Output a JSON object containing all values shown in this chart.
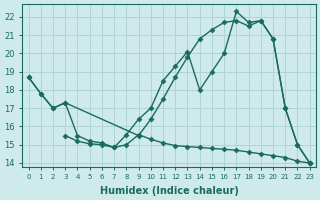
{
  "background_color": "#ceeaea",
  "grid_color": "#aed4d4",
  "line_color": "#1a6b5a",
  "xlabel": "Humidex (Indice chaleur)",
  "ylim": [
    13.8,
    22.7
  ],
  "xlim": [
    -0.5,
    23.5
  ],
  "yticks": [
    14,
    15,
    16,
    17,
    18,
    19,
    20,
    21,
    22
  ],
  "xticks": [
    0,
    1,
    2,
    3,
    4,
    5,
    6,
    7,
    8,
    9,
    10,
    11,
    12,
    13,
    14,
    15,
    16,
    17,
    18,
    19,
    20,
    21,
    22,
    23
  ],
  "line1_x": [
    0,
    1,
    2,
    3,
    4,
    5,
    6,
    7,
    8,
    9,
    10,
    11,
    12,
    13,
    14,
    15,
    16,
    17,
    18,
    19,
    20,
    21,
    22,
    23
  ],
  "line1_y": [
    18.7,
    17.8,
    17.0,
    17.3,
    15.5,
    15.2,
    15.1,
    14.85,
    15.55,
    16.4,
    17.0,
    18.5,
    19.3,
    20.1,
    18.0,
    19.0,
    20.0,
    22.3,
    21.7,
    21.8,
    20.8,
    17.0,
    15.0,
    14.0
  ],
  "line2_x": [
    0,
    1,
    2,
    3,
    9,
    10,
    11,
    12,
    13,
    14,
    15,
    16,
    17,
    18,
    19,
    20,
    21,
    22,
    23
  ],
  "line2_y": [
    18.7,
    17.8,
    17.0,
    17.3,
    15.5,
    16.4,
    17.5,
    18.7,
    19.8,
    20.8,
    21.3,
    21.7,
    21.8,
    21.5,
    21.8,
    20.8,
    17.0,
    15.0,
    14.0
  ],
  "line3_x": [
    3,
    4,
    5,
    6,
    7,
    8,
    9,
    10,
    11,
    12,
    13,
    14,
    15,
    16,
    17,
    18,
    19,
    20,
    21,
    22,
    23
  ],
  "line3_y": [
    15.5,
    15.2,
    15.05,
    15.0,
    14.85,
    15.0,
    15.55,
    15.3,
    15.1,
    14.95,
    14.9,
    14.85,
    14.8,
    14.75,
    14.7,
    14.6,
    14.5,
    14.4,
    14.3,
    14.1,
    14.0
  ]
}
